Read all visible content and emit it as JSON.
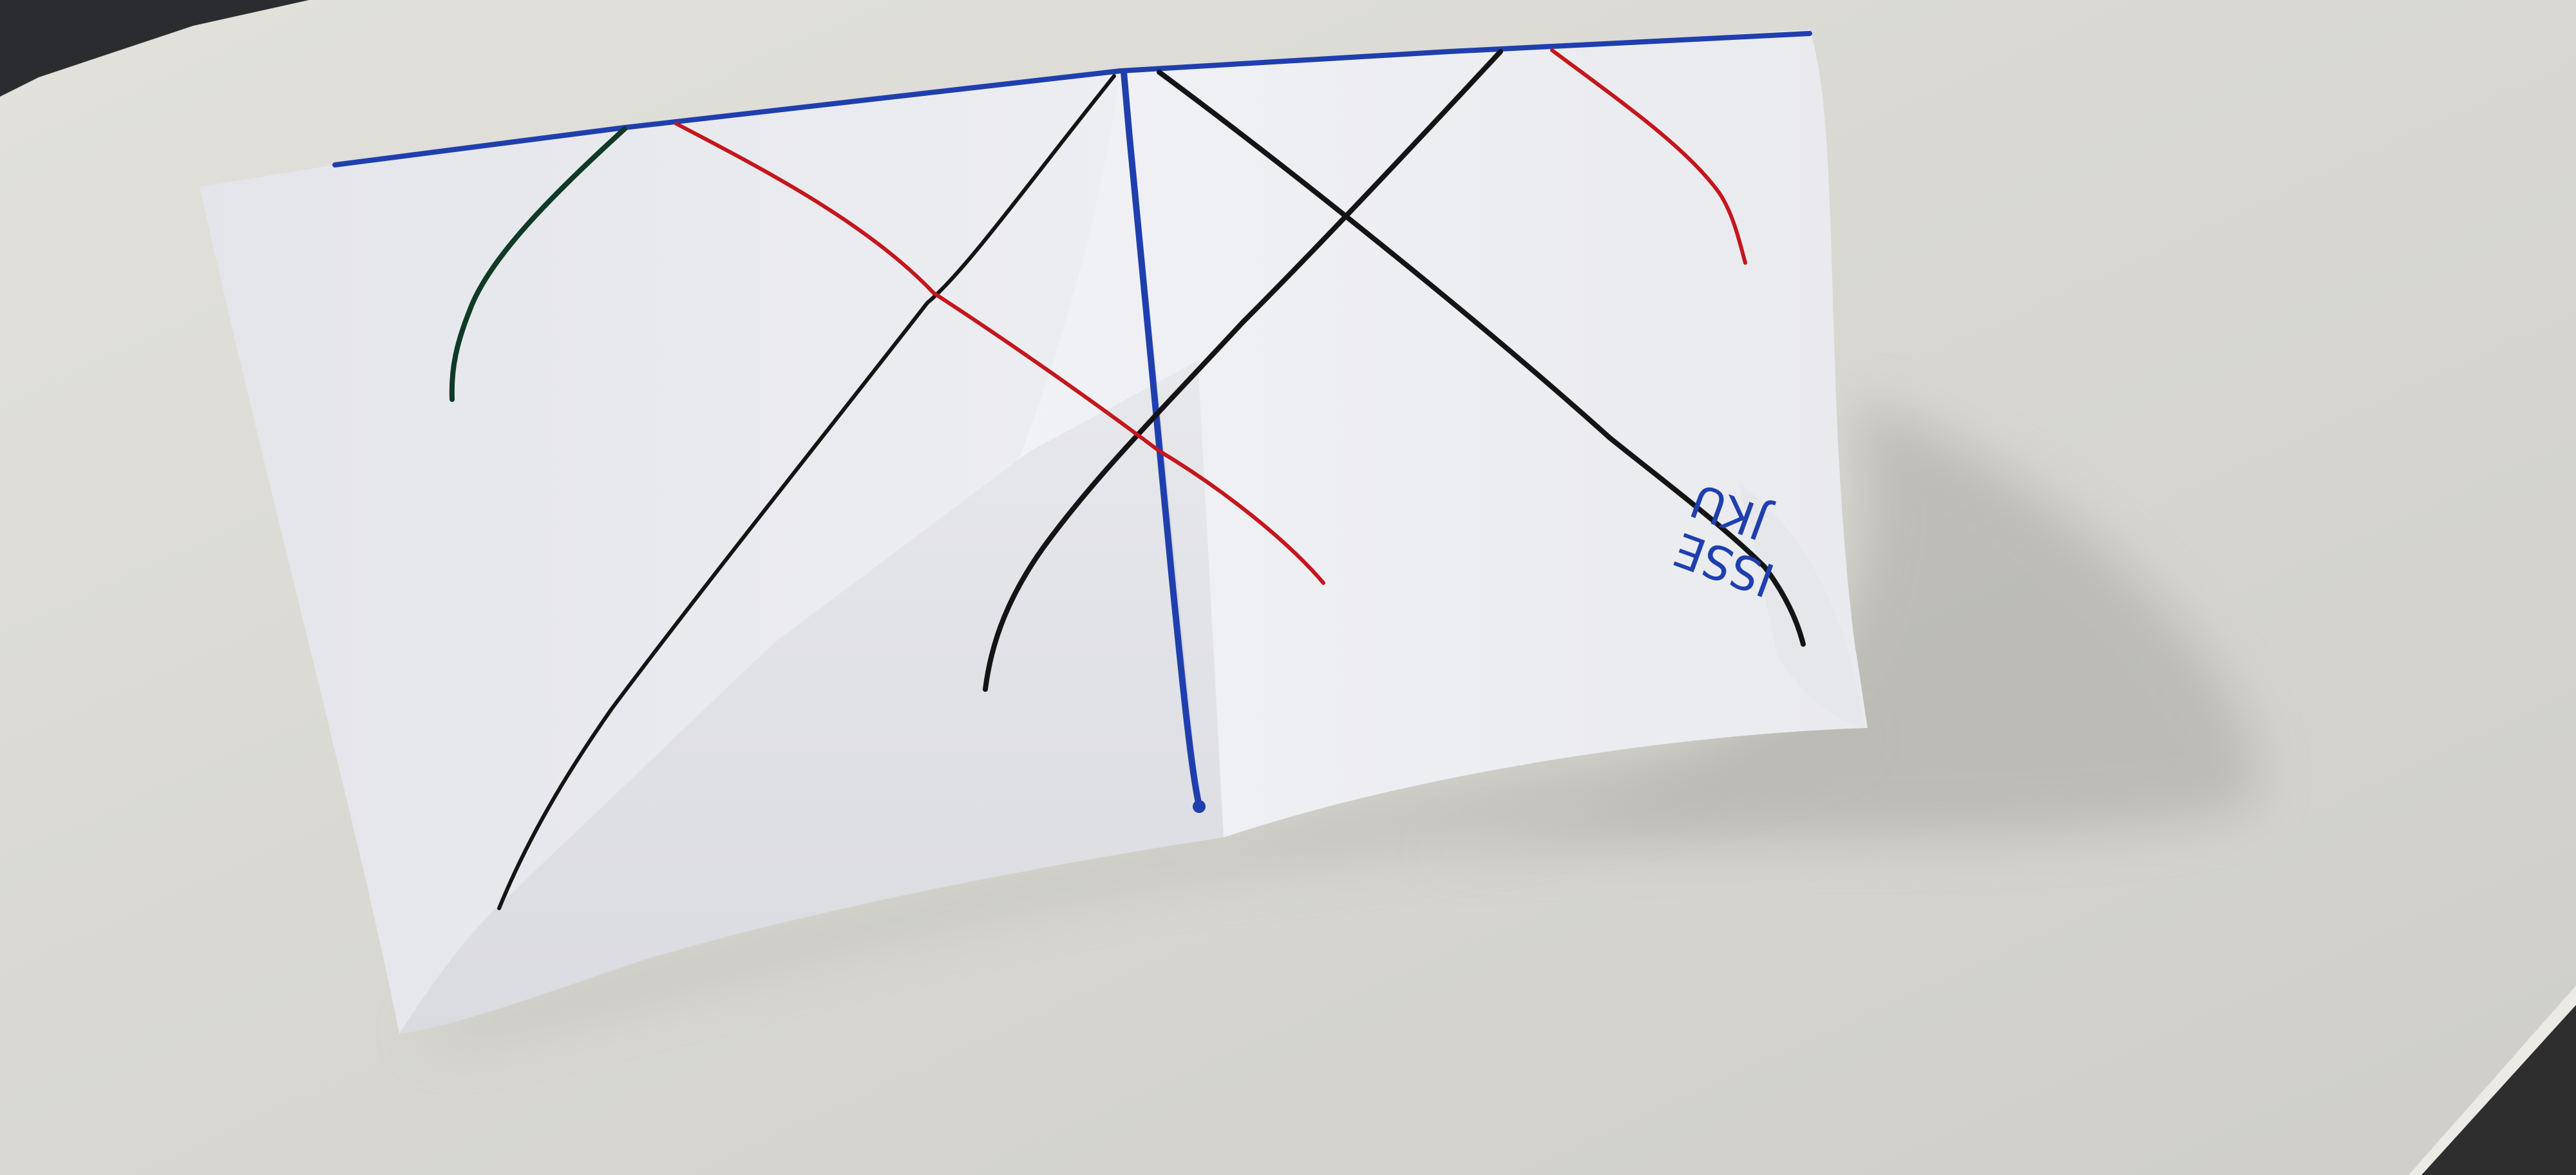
{
  "photo": {
    "paper_inscription": {
      "line1": "ISSE",
      "line2": "JKU"
    }
  },
  "colors": {
    "desk": "#d9d8d2",
    "paper": "#eeeff3",
    "ink_blue": "#1f3fae",
    "ink_red": "#c4161c",
    "ink_black": "#141414",
    "ink_green": "#0f3a26"
  }
}
